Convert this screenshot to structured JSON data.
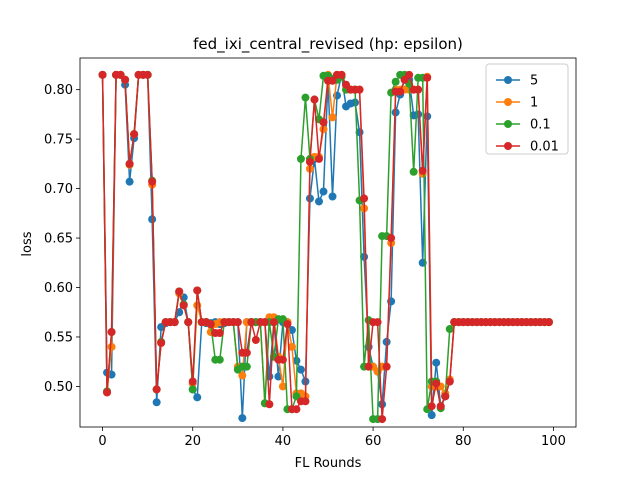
{
  "chart_data": {
    "type": "line",
    "title": "fed_ixi_central_revised (hp: epsilon)",
    "xlabel": "FL Rounds",
    "ylabel": "loss",
    "xlim": [
      -5,
      105
    ],
    "ylim": [
      0.459,
      0.832
    ],
    "xticks": [
      0,
      20,
      40,
      60,
      80,
      100
    ],
    "yticks": [
      0.5,
      0.55,
      0.6,
      0.65,
      0.7,
      0.75,
      0.8
    ],
    "grid": false,
    "legend_position": "top-right",
    "series": [
      {
        "name": "5",
        "color": "#1f77b4",
        "x": [
          0,
          1,
          2,
          3,
          4,
          5,
          6,
          7,
          8,
          9,
          10,
          11,
          12,
          13,
          14,
          15,
          16,
          17,
          18,
          19,
          20,
          21,
          22,
          23,
          24,
          25,
          26,
          27,
          28,
          29,
          30,
          31,
          32,
          33,
          34,
          35,
          36,
          37,
          38,
          39,
          40,
          41,
          42,
          43,
          44,
          45,
          46,
          47,
          48,
          49,
          50,
          51,
          52,
          53,
          54,
          55,
          56,
          57,
          58,
          59,
          60,
          61,
          62,
          63,
          64,
          65,
          66,
          67,
          68,
          69,
          70,
          71,
          72,
          73,
          74,
          75,
          76,
          77,
          78,
          79,
          80,
          81,
          82,
          83,
          84,
          85,
          86,
          87,
          88,
          89,
          90,
          91,
          92,
          93,
          94,
          95,
          96,
          97,
          98,
          99
        ],
        "y": [
          0.815,
          0.514,
          0.512,
          0.815,
          0.815,
          0.805,
          0.707,
          0.751,
          0.815,
          0.815,
          0.815,
          0.669,
          0.484,
          0.56,
          0.564,
          0.565,
          0.565,
          0.575,
          0.59,
          0.565,
          0.497,
          0.489,
          0.565,
          0.564,
          0.564,
          0.565,
          0.563,
          0.564,
          0.565,
          0.565,
          0.565,
          0.468,
          0.565,
          0.565,
          0.565,
          0.565,
          0.565,
          0.51,
          0.565,
          0.51,
          0.565,
          0.565,
          0.557,
          0.526,
          0.517,
          0.505,
          0.69,
          0.73,
          0.687,
          0.697,
          0.81,
          0.692,
          0.794,
          0.815,
          0.783,
          0.786,
          0.787,
          0.757,
          0.631,
          0.54,
          0.52,
          0.515,
          0.482,
          0.545,
          0.586,
          0.777,
          0.795,
          0.81,
          0.81,
          0.774,
          0.775,
          0.625,
          0.773,
          0.471,
          0.524,
          0.48,
          0.49,
          0.505,
          0.565,
          0.565,
          0.565,
          0.565,
          0.565,
          0.565,
          0.565,
          0.565,
          0.565,
          0.565,
          0.565,
          0.565,
          0.565,
          0.565,
          0.565,
          0.565,
          0.565,
          0.565,
          0.565,
          0.565,
          0.565,
          0.565
        ]
      },
      {
        "name": "1",
        "color": "#ff7f0e",
        "x": [
          0,
          1,
          2,
          3,
          4,
          5,
          6,
          7,
          8,
          9,
          10,
          11,
          12,
          13,
          14,
          15,
          16,
          17,
          18,
          19,
          20,
          21,
          22,
          23,
          24,
          25,
          26,
          27,
          28,
          29,
          30,
          31,
          32,
          33,
          34,
          35,
          36,
          37,
          38,
          39,
          40,
          41,
          42,
          43,
          44,
          45,
          46,
          47,
          48,
          49,
          50,
          51,
          52,
          53,
          54,
          55,
          56,
          57,
          58,
          59,
          60,
          61,
          62,
          63,
          64,
          65,
          66,
          67,
          68,
          69,
          70,
          71,
          72,
          73,
          74,
          75,
          76,
          77,
          78,
          79,
          80,
          81,
          82,
          83,
          84,
          85,
          86,
          87,
          88,
          89,
          90,
          91,
          92,
          93,
          94,
          95,
          96,
          97,
          98,
          99
        ],
        "y": [
          0.815,
          0.494,
          0.54,
          0.815,
          0.815,
          0.81,
          0.724,
          0.755,
          0.815,
          0.815,
          0.815,
          0.704,
          0.497,
          0.544,
          0.565,
          0.565,
          0.565,
          0.594,
          0.582,
          0.565,
          0.503,
          0.582,
          0.565,
          0.565,
          0.555,
          0.563,
          0.565,
          0.565,
          0.565,
          0.565,
          0.52,
          0.511,
          0.565,
          0.565,
          0.565,
          0.565,
          0.483,
          0.57,
          0.57,
          0.53,
          0.5,
          0.565,
          0.54,
          0.493,
          0.493,
          0.49,
          0.72,
          0.732,
          0.732,
          0.76,
          0.815,
          0.772,
          0.815,
          0.815,
          0.8,
          0.8,
          0.8,
          0.8,
          0.68,
          0.52,
          0.52,
          0.515,
          0.52,
          0.52,
          0.645,
          0.8,
          0.8,
          0.8,
          0.8,
          0.8,
          0.8,
          0.715,
          0.813,
          0.5,
          0.5,
          0.5,
          0.493,
          0.507,
          0.565,
          0.565,
          0.565,
          0.565,
          0.565,
          0.565,
          0.565,
          0.565,
          0.565,
          0.565,
          0.565,
          0.565,
          0.565,
          0.565,
          0.565,
          0.565,
          0.565,
          0.565,
          0.565,
          0.565,
          0.565,
          0.565
        ]
      },
      {
        "name": "0.1",
        "color": "#2ca02c",
        "x": [
          0,
          1,
          2,
          3,
          4,
          5,
          6,
          7,
          8,
          9,
          10,
          11,
          12,
          13,
          14,
          15,
          16,
          17,
          18,
          19,
          20,
          21,
          22,
          23,
          24,
          25,
          26,
          27,
          28,
          29,
          30,
          31,
          32,
          33,
          34,
          35,
          36,
          37,
          38,
          39,
          40,
          41,
          42,
          43,
          44,
          45,
          46,
          47,
          48,
          49,
          50,
          51,
          52,
          53,
          54,
          55,
          56,
          57,
          58,
          59,
          60,
          61,
          62,
          63,
          64,
          65,
          66,
          67,
          68,
          69,
          70,
          71,
          72,
          73,
          74,
          75,
          76,
          77,
          78,
          79,
          80,
          81,
          82,
          83,
          84,
          85,
          86,
          87,
          88,
          89,
          90,
          91,
          92,
          93,
          94,
          95,
          96,
          97,
          98,
          99
        ],
        "y": [
          0.815,
          0.495,
          0.555,
          0.815,
          0.815,
          0.81,
          0.725,
          0.755,
          0.815,
          0.815,
          0.815,
          0.708,
          0.497,
          0.545,
          0.565,
          0.565,
          0.565,
          0.596,
          0.583,
          0.565,
          0.497,
          0.597,
          0.565,
          0.565,
          0.563,
          0.527,
          0.527,
          0.565,
          0.565,
          0.565,
          0.517,
          0.52,
          0.52,
          0.565,
          0.565,
          0.565,
          0.483,
          0.565,
          0.53,
          0.568,
          0.568,
          0.477,
          0.477,
          0.49,
          0.73,
          0.792,
          0.73,
          0.79,
          0.77,
          0.814,
          0.814,
          0.811,
          0.81,
          0.813,
          0.8,
          0.8,
          0.8,
          0.688,
          0.52,
          0.567,
          0.467,
          0.467,
          0.652,
          0.652,
          0.797,
          0.808,
          0.815,
          0.815,
          0.806,
          0.717,
          0.812,
          0.812,
          0.477,
          0.505,
          0.505,
          0.478,
          0.49,
          0.558,
          0.565,
          0.565,
          0.565,
          0.565,
          0.565,
          0.565,
          0.565,
          0.565,
          0.565,
          0.565,
          0.565,
          0.565,
          0.565,
          0.565,
          0.565,
          0.565,
          0.565,
          0.565,
          0.565,
          0.565,
          0.565,
          0.565
        ]
      },
      {
        "name": "0.01",
        "color": "#d62728",
        "x": [
          0,
          1,
          2,
          3,
          4,
          5,
          6,
          7,
          8,
          9,
          10,
          11,
          12,
          13,
          14,
          15,
          16,
          17,
          18,
          19,
          20,
          21,
          22,
          23,
          24,
          25,
          26,
          27,
          28,
          29,
          30,
          31,
          32,
          33,
          34,
          35,
          36,
          37,
          38,
          39,
          40,
          41,
          42,
          43,
          44,
          45,
          46,
          47,
          48,
          49,
          50,
          51,
          52,
          53,
          54,
          55,
          56,
          57,
          58,
          59,
          60,
          61,
          62,
          63,
          64,
          65,
          66,
          67,
          68,
          69,
          70,
          71,
          72,
          73,
          74,
          75,
          76,
          77,
          78,
          79,
          80,
          81,
          82,
          83,
          84,
          85,
          86,
          87,
          88,
          89,
          90,
          91,
          92,
          93,
          94,
          95,
          96,
          97,
          98,
          99
        ],
        "y": [
          0.815,
          0.494,
          0.555,
          0.815,
          0.815,
          0.81,
          0.725,
          0.755,
          0.815,
          0.815,
          0.815,
          0.707,
          0.497,
          0.544,
          0.565,
          0.565,
          0.565,
          0.596,
          0.582,
          0.565,
          0.505,
          0.597,
          0.565,
          0.565,
          0.563,
          0.554,
          0.554,
          0.565,
          0.565,
          0.565,
          0.565,
          0.534,
          0.534,
          0.565,
          0.547,
          0.565,
          0.565,
          0.482,
          0.565,
          0.527,
          0.527,
          0.563,
          0.477,
          0.477,
          0.485,
          0.485,
          0.727,
          0.79,
          0.73,
          0.767,
          0.809,
          0.809,
          0.815,
          0.815,
          0.805,
          0.8,
          0.8,
          0.8,
          0.69,
          0.52,
          0.565,
          0.565,
          0.467,
          0.52,
          0.65,
          0.798,
          0.798,
          0.81,
          0.815,
          0.8,
          0.8,
          0.718,
          0.812,
          0.48,
          0.503,
          0.48,
          0.49,
          0.505,
          0.565,
          0.565,
          0.565,
          0.565,
          0.565,
          0.565,
          0.565,
          0.565,
          0.565,
          0.565,
          0.565,
          0.565,
          0.565,
          0.565,
          0.565,
          0.565,
          0.565,
          0.565,
          0.565,
          0.565,
          0.565,
          0.565
        ]
      }
    ]
  }
}
